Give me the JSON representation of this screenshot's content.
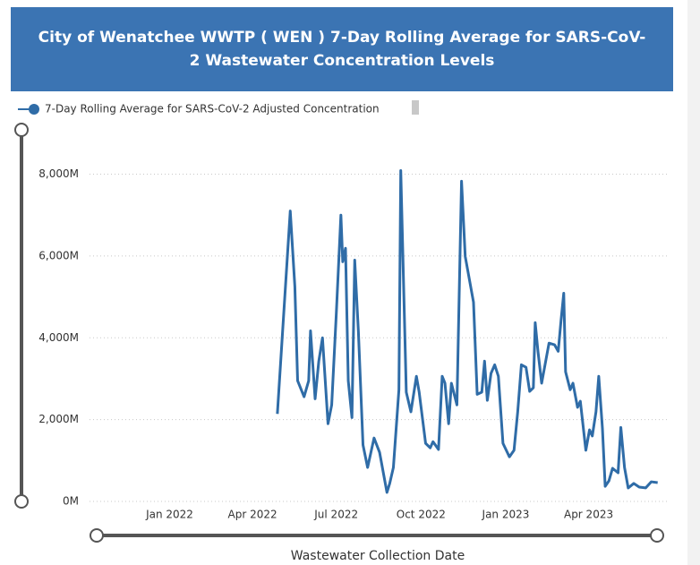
{
  "chart_data": {
    "type": "line",
    "title": "City of Wenatchee WWTP ( WEN ) 7-Day Rolling Average for SARS-CoV-2 Wastewater Concentration Levels",
    "x_label": "Wastewater Collection Date",
    "x": [
      "2022-04-28",
      "2022-05-12",
      "2022-05-17",
      "2022-05-20",
      "2022-05-27",
      "2022-06-01",
      "2022-06-03",
      "2022-06-08",
      "2022-06-12",
      "2022-06-16",
      "2022-06-22",
      "2022-06-26",
      "2022-07-01",
      "2022-07-06",
      "2022-07-08",
      "2022-07-11",
      "2022-07-14",
      "2022-07-18",
      "2022-07-21",
      "2022-07-25",
      "2022-07-30",
      "2022-08-04",
      "2022-08-11",
      "2022-08-17",
      "2022-08-25",
      "2022-08-28",
      "2022-09-01",
      "2022-09-07",
      "2022-09-09",
      "2022-09-15",
      "2022-09-20",
      "2022-09-26",
      "2022-09-29",
      "2022-10-06",
      "2022-10-11",
      "2022-10-14",
      "2022-10-20",
      "2022-10-24",
      "2022-10-27",
      "2022-10-31",
      "2022-11-03",
      "2022-11-09",
      "2022-11-14",
      "2022-11-18",
      "2022-11-27",
      "2022-12-01",
      "2022-12-06",
      "2022-12-09",
      "2022-12-12",
      "2022-12-16",
      "2022-12-20",
      "2022-12-24",
      "2022-12-29",
      "2023-01-05",
      "2023-01-10",
      "2023-01-14",
      "2023-01-18",
      "2023-01-23",
      "2023-01-27",
      "2023-01-31",
      "2023-02-02",
      "2023-02-05",
      "2023-02-09",
      "2023-02-17",
      "2023-02-23",
      "2023-02-27",
      "2023-03-02",
      "2023-03-05",
      "2023-03-07",
      "2023-03-12",
      "2023-03-15",
      "2023-03-20",
      "2023-03-23",
      "2023-03-29",
      "2023-04-02",
      "2023-04-05",
      "2023-04-09",
      "2023-04-12",
      "2023-04-16",
      "2023-04-19",
      "2023-04-23",
      "2023-04-27",
      "2023-05-03",
      "2023-05-06",
      "2023-05-10",
      "2023-05-14",
      "2023-05-20",
      "2023-05-26",
      "2023-06-02",
      "2023-06-08",
      "2023-06-15"
    ],
    "series": [
      {
        "name": "7-Day Rolling Average for SARS-CoV-2 Adjusted Concentration",
        "color": "#2f6ca7",
        "values": [
          2140,
          7100,
          5250,
          2950,
          2560,
          2950,
          4170,
          2510,
          3430,
          4000,
          1900,
          2360,
          4590,
          7000,
          5860,
          6190,
          2950,
          2050,
          5900,
          4150,
          1380,
          830,
          1550,
          1200,
          220,
          440,
          830,
          2730,
          8090,
          2670,
          2190,
          3060,
          2670,
          1420,
          1310,
          1460,
          1270,
          3060,
          2890,
          1900,
          2890,
          2360,
          7830,
          5990,
          4870,
          2620,
          2670,
          3430,
          2470,
          3130,
          3340,
          3060,
          1420,
          1090,
          1250,
          2190,
          3340,
          3280,
          2690,
          2780,
          4370,
          3670,
          2890,
          3870,
          3830,
          3670,
          4410,
          5090,
          3170,
          2730,
          2890,
          2300,
          2450,
          1250,
          1750,
          1600,
          2190,
          3060,
          1790,
          370,
          500,
          810,
          700,
          1810,
          830,
          330,
          440,
          350,
          330,
          480,
          460
        ]
      }
    ],
    "xlim": [
      "2021-10-06",
      "2023-06-25"
    ],
    "xticks": [
      {
        "value": "2022-01-01",
        "label": "Jan 2022"
      },
      {
        "value": "2022-04-01",
        "label": "Apr 2022"
      },
      {
        "value": "2022-07-01",
        "label": "Jul 2022"
      },
      {
        "value": "2022-10-01",
        "label": "Oct 2022"
      },
      {
        "value": "2023-01-01",
        "label": "Jan 2023"
      },
      {
        "value": "2023-04-01",
        "label": "Apr 2023"
      }
    ],
    "ylim": [
      0,
      8450
    ],
    "yticks": [
      {
        "value": 0,
        "label": "0M"
      },
      {
        "value": 2000,
        "label": "2,000M"
      },
      {
        "value": 4000,
        "label": "4,000M"
      },
      {
        "value": 6000,
        "label": "6,000M"
      },
      {
        "value": 8000,
        "label": "8,000M"
      }
    ],
    "grid": true
  }
}
